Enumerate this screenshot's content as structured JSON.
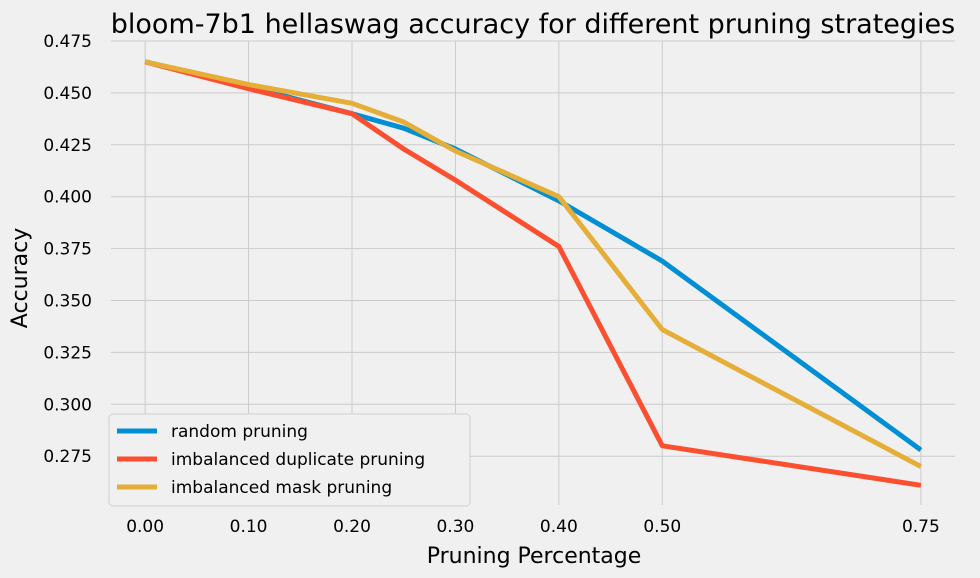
{
  "chart_data": {
    "type": "line",
    "title": "bloom-7b1 hellaswag accuracy for different pruning strategies",
    "xlabel": "Pruning Percentage",
    "ylabel": "Accuracy",
    "x_ticks": [
      "0.00",
      "0.10",
      "0.20",
      "0.30",
      "0.40",
      "0.50",
      "0.75"
    ],
    "x_tick_values": [
      0.0,
      0.1,
      0.2,
      0.3,
      0.4,
      0.5,
      0.75
    ],
    "y_ticks": [
      "0.275",
      "0.300",
      "0.325",
      "0.350",
      "0.375",
      "0.400",
      "0.425",
      "0.450",
      "0.475"
    ],
    "y_tick_values": [
      0.275,
      0.3,
      0.325,
      0.35,
      0.375,
      0.4,
      0.425,
      0.45,
      0.475
    ],
    "xlim": [
      -0.033,
      0.783
    ],
    "ylim": [
      0.2515,
      0.475
    ],
    "grid": true,
    "legend_position": "lower-left",
    "series": [
      {
        "name": "random pruning",
        "color": "#008fd5",
        "x": [
          0.0,
          0.1,
          0.2,
          0.25,
          0.3,
          0.4,
          0.5,
          0.75
        ],
        "y": [
          0.465,
          0.453,
          0.44,
          0.433,
          0.423,
          0.398,
          0.369,
          0.278
        ]
      },
      {
        "name": "imbalanced duplicate pruning",
        "color": "#fc4f30",
        "x": [
          0.0,
          0.1,
          0.2,
          0.25,
          0.3,
          0.4,
          0.5,
          0.75
        ],
        "y": [
          0.465,
          0.452,
          0.44,
          0.423,
          0.408,
          0.376,
          0.28,
          0.261
        ]
      },
      {
        "name": "imbalanced mask pruning",
        "color": "#e5ae38",
        "x": [
          0.0,
          0.1,
          0.2,
          0.25,
          0.3,
          0.4,
          0.5,
          0.75
        ],
        "y": [
          0.465,
          0.454,
          0.445,
          0.436,
          0.422,
          0.4,
          0.336,
          0.27
        ]
      }
    ]
  }
}
